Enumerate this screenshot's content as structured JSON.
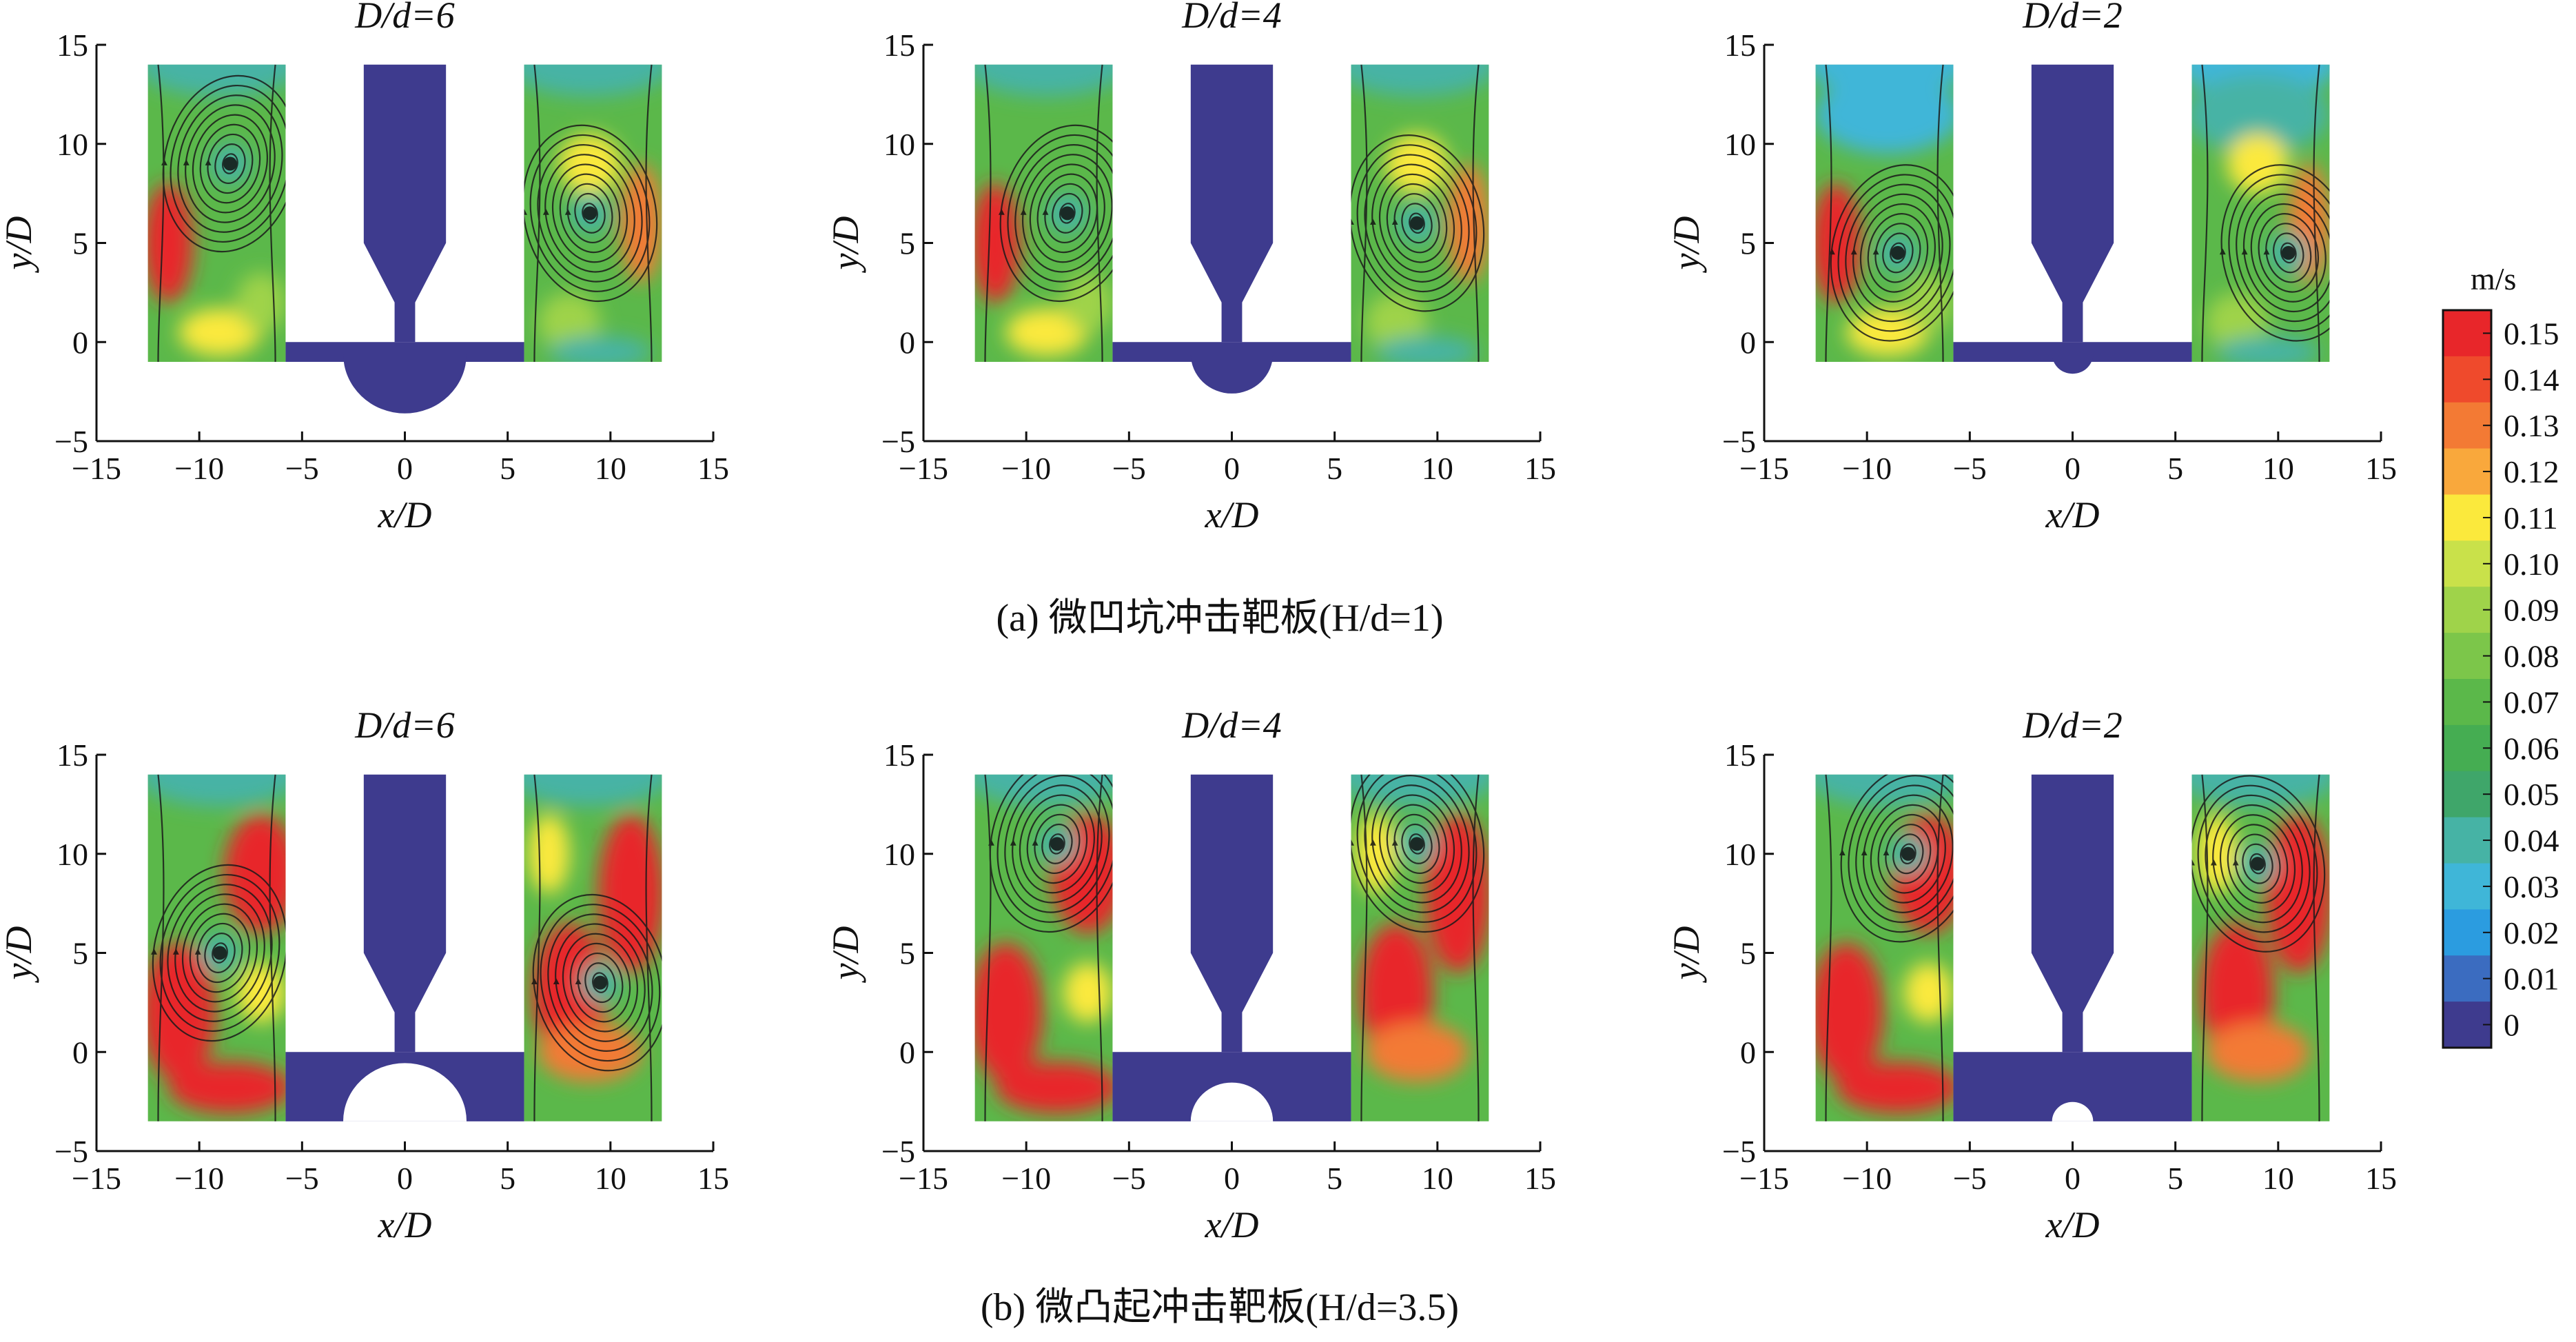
{
  "figure": {
    "caption_a": "(a) 微凹坑冲击靶板(H/d=1)",
    "caption_b": "(b) 微凸起冲击靶板(H/d=3.5)"
  },
  "legend": {
    "title": "m/s",
    "labels": [
      "0.15",
      "0.14",
      "0.13",
      "0.12",
      "0.11",
      "0.10",
      "0.09",
      "0.08",
      "0.07",
      "0.06",
      "0.05",
      "0.04",
      "0.03",
      "0.02",
      "0.01",
      "0"
    ],
    "colors": [
      "#e8262a",
      "#ef4a2c",
      "#f37a34",
      "#f9a83c",
      "#fbe93c",
      "#c9e14a",
      "#9fd34a",
      "#7cc64a",
      "#5bb84a",
      "#45ad52",
      "#3fa66a",
      "#46b3a5",
      "#3fb6d8",
      "#2b9ce0",
      "#3b6cc0",
      "#3e3b8e"
    ]
  },
  "chart_data": [
    {
      "type": "heatmap",
      "id": "a-6",
      "title": "D/d=6",
      "xlabel": "x/D",
      "ylabel": "y/D",
      "xlim": [
        -15,
        15
      ],
      "ylim": [
        -5,
        15
      ],
      "xticks": [
        "−15",
        "−10",
        "−5",
        "0",
        "5",
        "10",
        "15"
      ],
      "yticks": [
        "15",
        "10",
        "5",
        "0",
        "−5"
      ],
      "target": "pit",
      "feature_radius": 3,
      "vortex_left": [
        -8.5,
        9
      ],
      "vortex_right": [
        9,
        6.5
      ],
      "intensity": "medium"
    },
    {
      "type": "heatmap",
      "id": "a-4",
      "title": "D/d=4",
      "xlabel": "x/D",
      "ylabel": "y/D",
      "xlim": [
        -15,
        15
      ],
      "ylim": [
        -5,
        15
      ],
      "xticks": [
        "−15",
        "−10",
        "−5",
        "0",
        "5",
        "10",
        "15"
      ],
      "yticks": [
        "15",
        "10",
        "5",
        "0",
        "−5"
      ],
      "target": "pit",
      "feature_radius": 2,
      "vortex_left": [
        -8,
        6.5
      ],
      "vortex_right": [
        9,
        6
      ],
      "intensity": "medium"
    },
    {
      "type": "heatmap",
      "id": "a-2",
      "title": "D/d=2",
      "xlabel": "x/D",
      "ylabel": "y/D",
      "xlim": [
        -15,
        15
      ],
      "ylim": [
        -5,
        15
      ],
      "xticks": [
        "−15",
        "−10",
        "−5",
        "0",
        "5",
        "10",
        "15"
      ],
      "yticks": [
        "15",
        "10",
        "5",
        "0",
        "−5"
      ],
      "target": "pit",
      "feature_radius": 1,
      "vortex_left": [
        -8.5,
        4.5
      ],
      "vortex_right": [
        10.5,
        4.5
      ],
      "intensity": "low"
    },
    {
      "type": "heatmap",
      "id": "b-6",
      "title": "D/d=6",
      "xlabel": "x/D",
      "ylabel": "y/D",
      "xlim": [
        -15,
        15
      ],
      "ylim": [
        -5,
        15
      ],
      "xticks": [
        "−15",
        "−10",
        "−5",
        "0",
        "5",
        "10",
        "15"
      ],
      "yticks": [
        "15",
        "10",
        "5",
        "0",
        "−5"
      ],
      "target": "bump",
      "feature_radius": 3,
      "vortex_left": [
        -9,
        5
      ],
      "vortex_right": [
        9.5,
        3.5
      ],
      "intensity": "high"
    },
    {
      "type": "heatmap",
      "id": "b-4",
      "title": "D/d=4",
      "xlabel": "x/D",
      "ylabel": "y/D",
      "xlim": [
        -15,
        15
      ],
      "ylim": [
        -5,
        15
      ],
      "xticks": [
        "−15",
        "−10",
        "−5",
        "0",
        "5",
        "10",
        "15"
      ],
      "yticks": [
        "15",
        "10",
        "5",
        "0",
        "−5"
      ],
      "target": "bump",
      "feature_radius": 2,
      "vortex_left": [
        -8.5,
        10.5
      ],
      "vortex_right": [
        9,
        10.5
      ],
      "intensity": "high"
    },
    {
      "type": "heatmap",
      "id": "b-2",
      "title": "D/d=2",
      "xlabel": "x/D",
      "ylabel": "y/D",
      "xlim": [
        -15,
        15
      ],
      "ylim": [
        -5,
        15
      ],
      "xticks": [
        "−15",
        "−10",
        "−5",
        "0",
        "5",
        "10",
        "15"
      ],
      "yticks": [
        "15",
        "10",
        "5",
        "0",
        "−5"
      ],
      "target": "bump",
      "feature_radius": 1,
      "vortex_left": [
        -8,
        10
      ],
      "vortex_right": [
        9,
        9.5
      ],
      "intensity": "high"
    }
  ]
}
